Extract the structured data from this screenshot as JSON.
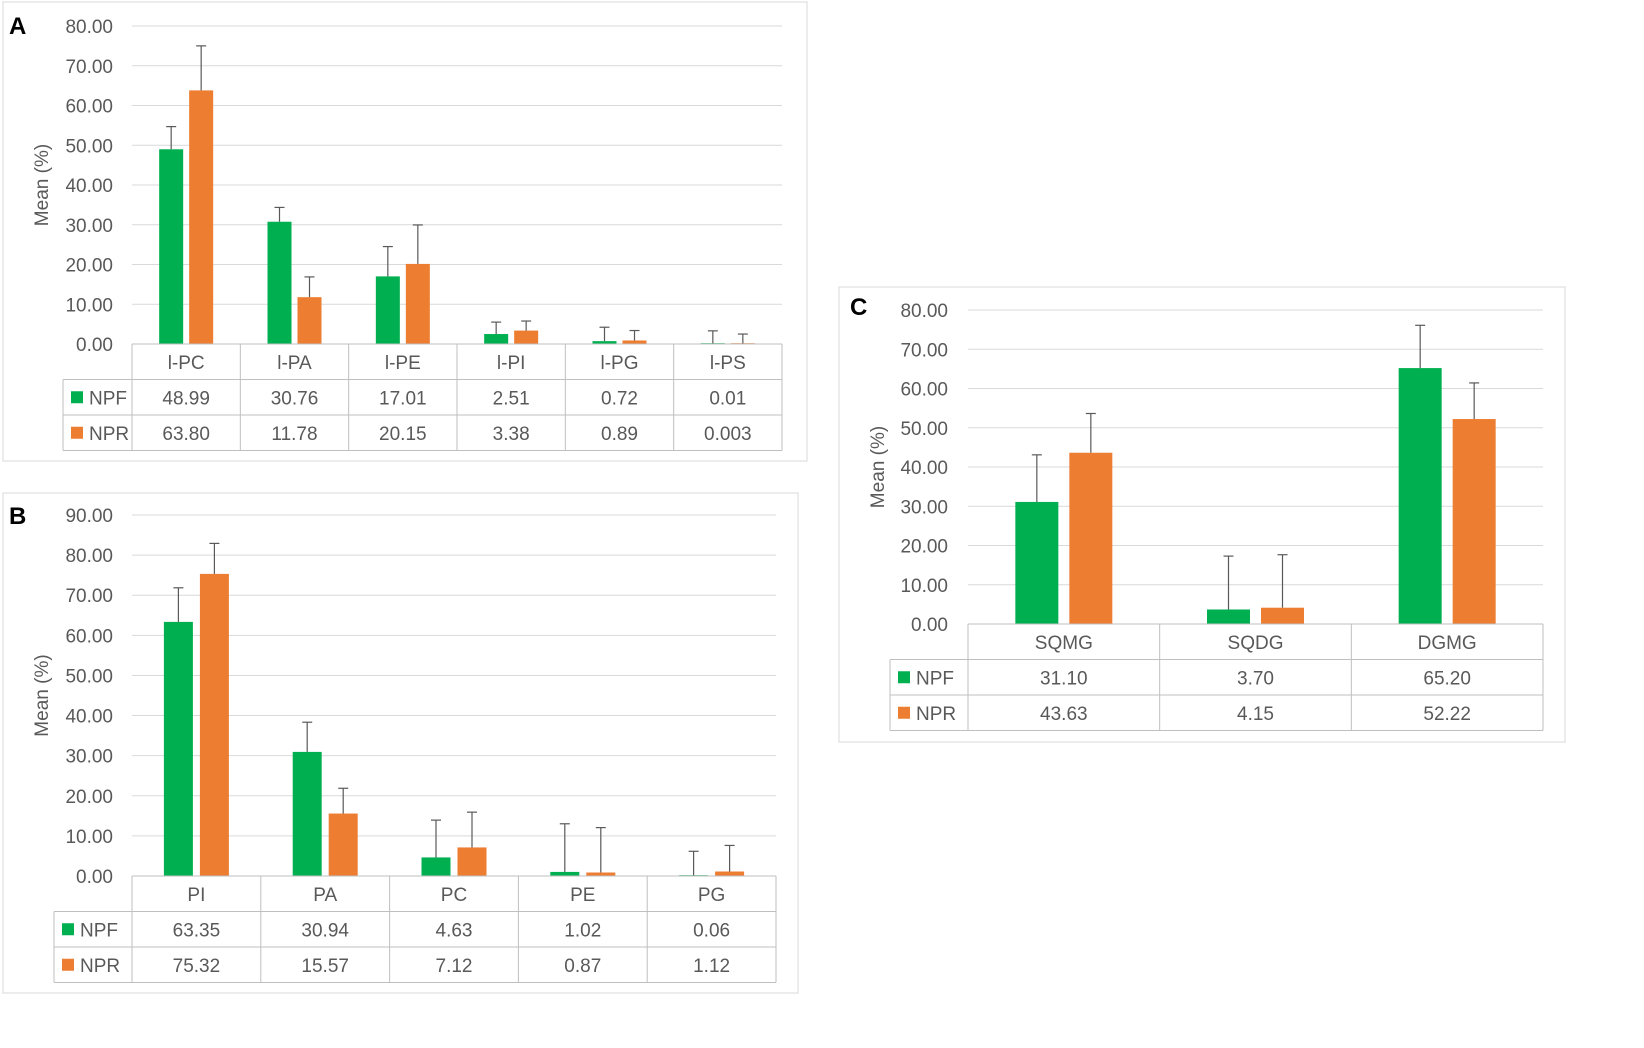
{
  "colors": {
    "NPF": "#00b050",
    "NPR": "#ed7d31",
    "grid": "#d9d9d9",
    "border": "#bfbfbf",
    "error": "#595959",
    "text": "#595959"
  },
  "panels": [
    {
      "letter": "A"
    },
    {
      "letter": "B"
    },
    {
      "letter": "C"
    }
  ],
  "chart_data": [
    {
      "type": "bar",
      "panel": "A",
      "ylabel": "Mean (%)",
      "ylim": [
        0,
        80
      ],
      "yticks": [
        "0.00",
        "10.00",
        "20.00",
        "30.00",
        "40.00",
        "50.00",
        "60.00",
        "70.00",
        "80.00"
      ],
      "grid": true,
      "legend": "data-table",
      "categories": [
        "l-PC",
        "l-PA",
        "l-PE",
        "l-PI",
        "l-PG",
        "l-PS"
      ],
      "series": [
        {
          "name": "NPF",
          "values": [
            48.99,
            30.76,
            17.01,
            2.51,
            0.72,
            0.01
          ],
          "labels": [
            "48.99",
            "30.76",
            "17.01",
            "2.51",
            "0.72",
            "0.01"
          ],
          "error": [
            5.7,
            3.6,
            7.5,
            3.0,
            3.5,
            3.3
          ]
        },
        {
          "name": "NPR",
          "values": [
            63.8,
            11.78,
            20.15,
            3.38,
            0.89,
            0.003
          ],
          "labels": [
            "63.80",
            "11.78",
            "20.15",
            "3.38",
            "0.89",
            "0.003"
          ],
          "error": [
            11.2,
            5.1,
            9.8,
            2.4,
            2.5,
            2.5
          ]
        }
      ]
    },
    {
      "type": "bar",
      "panel": "B",
      "ylabel": "Mean (%)",
      "ylim": [
        0,
        90
      ],
      "yticks": [
        "0.00",
        "10.00",
        "20.00",
        "30.00",
        "40.00",
        "50.00",
        "60.00",
        "70.00",
        "80.00",
        "90.00"
      ],
      "grid": true,
      "legend": "data-table",
      "categories": [
        "PI",
        "PA",
        "PC",
        "PE",
        "PG"
      ],
      "series": [
        {
          "name": "NPF",
          "values": [
            63.35,
            30.94,
            4.63,
            1.02,
            0.06
          ],
          "labels": [
            "63.35",
            "30.94",
            "4.63",
            "1.02",
            "0.06"
          ],
          "error": [
            8.5,
            7.4,
            9.3,
            12.0,
            6.1
          ]
        },
        {
          "name": "NPR",
          "values": [
            75.32,
            15.57,
            7.12,
            0.87,
            1.12
          ],
          "labels": [
            "75.32",
            "15.57",
            "7.12",
            "0.87",
            "1.12"
          ],
          "error": [
            7.6,
            6.3,
            8.8,
            11.2,
            6.5
          ]
        }
      ]
    },
    {
      "type": "bar",
      "panel": "C",
      "ylabel": "Mean (%)",
      "ylim": [
        0,
        80
      ],
      "yticks": [
        "0.00",
        "10.00",
        "20.00",
        "30.00",
        "40.00",
        "50.00",
        "60.00",
        "70.00",
        "80.00"
      ],
      "grid": true,
      "legend": "data-table",
      "categories": [
        "SQMG",
        "SQDG",
        "DGMG"
      ],
      "series": [
        {
          "name": "NPF",
          "values": [
            31.1,
            3.7,
            65.2
          ],
          "labels": [
            "31.10",
            "3.70",
            "65.20"
          ],
          "error": [
            12.0,
            13.6,
            10.9
          ]
        },
        {
          "name": "NPR",
          "values": [
            43.63,
            4.15,
            52.22
          ],
          "labels": [
            "43.63",
            "4.15",
            "52.22"
          ],
          "error": [
            10.0,
            13.5,
            9.2
          ]
        }
      ]
    }
  ]
}
